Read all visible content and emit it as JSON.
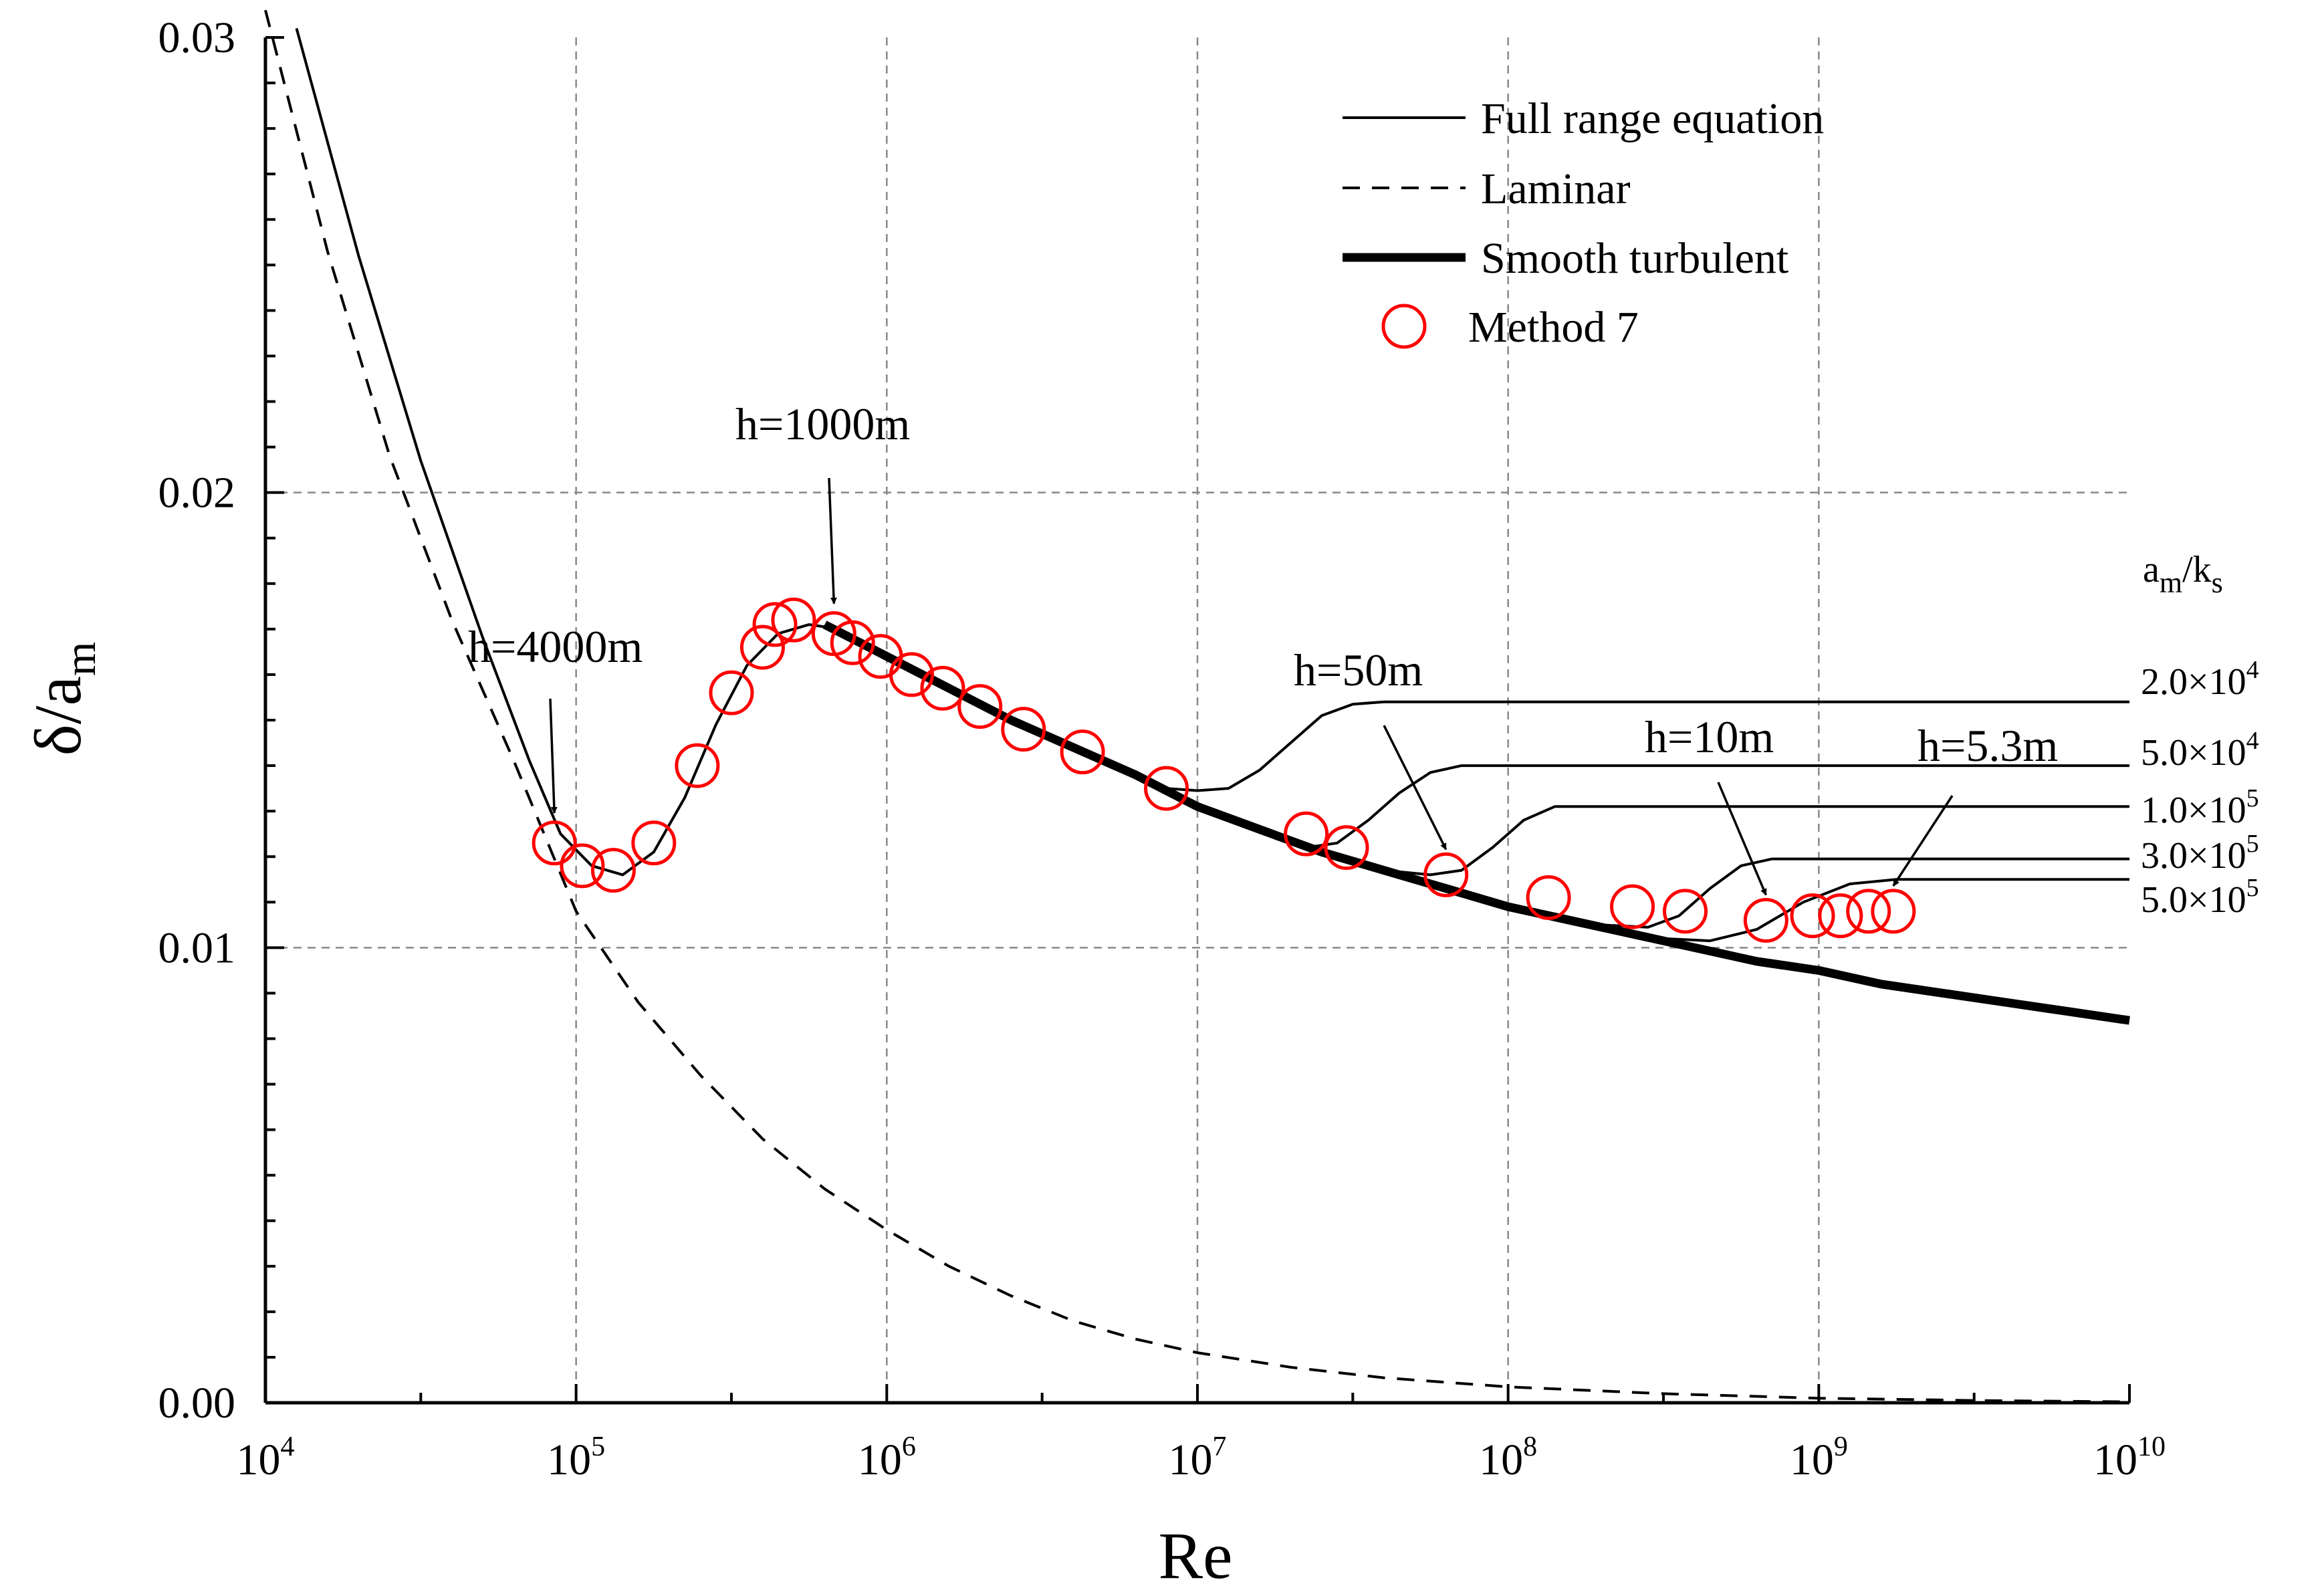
{
  "chart_data": {
    "type": "line",
    "title": "",
    "xlabel": "Re",
    "ylabel": "δ/a_m",
    "xscale": "log",
    "xlim_log10": [
      4,
      10
    ],
    "ylim": [
      0,
      0.03
    ],
    "grid": true,
    "x_ticks": [
      {
        "base": "10",
        "exp": "4"
      },
      {
        "base": "10",
        "exp": "5"
      },
      {
        "base": "10",
        "exp": "6"
      },
      {
        "base": "10",
        "exp": "7"
      },
      {
        "base": "10",
        "exp": "8"
      },
      {
        "base": "10",
        "exp": "9"
      },
      {
        "base": "10",
        "exp": "10"
      }
    ],
    "y_ticks": [
      {
        "value": 0.0,
        "label": "0.00"
      },
      {
        "value": 0.01,
        "label": "0.01"
      },
      {
        "value": 0.02,
        "label": "0.02"
      },
      {
        "value": 0.03,
        "label": "0.03"
      }
    ],
    "legend": {
      "position": "top-right",
      "entries": [
        {
          "label": "Full range equation",
          "style": "thin-solid"
        },
        {
          "label": "Laminar",
          "style": "dashed"
        },
        {
          "label": "Smooth turbulent",
          "style": "thick-solid"
        },
        {
          "label": "Method 7",
          "style": "red-open-circle"
        }
      ]
    },
    "series": {
      "laminar": {
        "name": "Laminar",
        "points": [
          [
            4.0,
            0.0306
          ],
          [
            4.2,
            0.0253
          ],
          [
            4.4,
            0.0208
          ],
          [
            4.6,
            0.0172
          ],
          [
            4.8,
            0.0141
          ],
          [
            5.0,
            0.0108
          ],
          [
            5.2,
            0.0088
          ],
          [
            5.4,
            0.0072
          ],
          [
            5.6,
            0.0058
          ],
          [
            5.8,
            0.0047
          ],
          [
            6.0,
            0.0038
          ],
          [
            6.2,
            0.003
          ],
          [
            6.4,
            0.00235
          ],
          [
            6.6,
            0.0018
          ],
          [
            6.8,
            0.0014
          ],
          [
            7.0,
            0.0011
          ],
          [
            7.3,
            0.00078
          ],
          [
            7.6,
            0.00055
          ],
          [
            8.0,
            0.00035
          ],
          [
            8.5,
            0.0002
          ],
          [
            9.0,
            0.0001
          ],
          [
            9.5,
            5e-05
          ],
          [
            10.0,
            2e-05
          ]
        ]
      },
      "smooth_turbulent": {
        "name": "Smooth turbulent",
        "points": [
          [
            5.8,
            0.0171
          ],
          [
            6.0,
            0.0164
          ],
          [
            6.2,
            0.0157
          ],
          [
            6.4,
            0.015
          ],
          [
            6.6,
            0.0144
          ],
          [
            6.8,
            0.0138
          ],
          [
            7.0,
            0.0131
          ],
          [
            7.2,
            0.0126
          ],
          [
            7.4,
            0.0121
          ],
          [
            7.6,
            0.0117
          ],
          [
            7.8,
            0.0113
          ],
          [
            8.0,
            0.0109
          ],
          [
            8.2,
            0.0106
          ],
          [
            8.4,
            0.0103
          ],
          [
            8.6,
            0.01
          ],
          [
            8.8,
            0.0097
          ],
          [
            9.0,
            0.0095
          ],
          [
            9.2,
            0.0092
          ],
          [
            9.4,
            0.009
          ],
          [
            9.6,
            0.0088
          ],
          [
            9.8,
            0.0086
          ],
          [
            10.0,
            0.0084
          ]
        ]
      },
      "full_range": {
        "name": "Full range equation",
        "main": [
          [
            4.1,
            0.0302
          ],
          [
            4.3,
            0.0252
          ],
          [
            4.5,
            0.0207
          ],
          [
            4.7,
            0.0168
          ],
          [
            4.85,
            0.0141
          ],
          [
            4.95,
            0.0125
          ],
          [
            5.05,
            0.0118
          ],
          [
            5.15,
            0.0116
          ],
          [
            5.25,
            0.0121
          ],
          [
            5.35,
            0.0133
          ],
          [
            5.45,
            0.0149
          ],
          [
            5.55,
            0.0162
          ],
          [
            5.65,
            0.0169
          ],
          [
            5.75,
            0.0171
          ],
          [
            5.85,
            0.017
          ],
          [
            6.0,
            0.0164
          ]
        ],
        "curves": [
          {
            "ratio": "2.0×10",
            "exp": "4",
            "points": [
              [
                6.8,
                0.0138
              ],
              [
                6.9,
                0.0135
              ],
              [
                7.0,
                0.01345
              ],
              [
                7.1,
                0.0135
              ],
              [
                7.2,
                0.0139
              ],
              [
                7.3,
                0.0145
              ],
              [
                7.4,
                0.0151
              ],
              [
                7.5,
                0.01535
              ],
              [
                7.6,
                0.0154
              ],
              [
                10.0,
                0.0154
              ]
            ]
          },
          {
            "ratio": "5.0×10",
            "exp": "4",
            "points": [
              [
                7.25,
                0.0124
              ],
              [
                7.35,
                0.0122
              ],
              [
                7.45,
                0.0123
              ],
              [
                7.55,
                0.0128
              ],
              [
                7.65,
                0.0134
              ],
              [
                7.75,
                0.01385
              ],
              [
                7.85,
                0.014
              ],
              [
                10.0,
                0.014
              ]
            ]
          },
          {
            "ratio": "1.0×10",
            "exp": "5",
            "points": [
              [
                7.6,
                0.0117
              ],
              [
                7.75,
                0.0116
              ],
              [
                7.85,
                0.0117
              ],
              [
                7.95,
                0.0122
              ],
              [
                8.05,
                0.0128
              ],
              [
                8.15,
                0.0131
              ],
              [
                8.25,
                0.0131
              ],
              [
                10.0,
                0.0131
              ]
            ]
          },
          {
            "ratio": "3.0×10",
            "exp": "5",
            "points": [
              [
                8.3,
                0.0105
              ],
              [
                8.45,
                0.01045
              ],
              [
                8.55,
                0.0107
              ],
              [
                8.65,
                0.0113
              ],
              [
                8.75,
                0.0118
              ],
              [
                8.85,
                0.01195
              ],
              [
                10.0,
                0.01195
              ]
            ]
          },
          {
            "ratio": "5.0×10",
            "exp": "5",
            "points": [
              [
                8.5,
                0.0102
              ],
              [
                8.65,
                0.01015
              ],
              [
                8.8,
                0.0104
              ],
              [
                8.95,
                0.011
              ],
              [
                9.1,
                0.0114
              ],
              [
                9.25,
                0.0115
              ],
              [
                10.0,
                0.0115
              ]
            ]
          }
        ]
      },
      "method7": {
        "name": "Method 7",
        "points": [
          [
            4.93,
            0.0123
          ],
          [
            5.02,
            0.0118
          ],
          [
            5.12,
            0.0117
          ],
          [
            5.25,
            0.0123
          ],
          [
            5.39,
            0.014
          ],
          [
            5.5,
            0.0156
          ],
          [
            5.6,
            0.0166
          ],
          [
            5.64,
            0.0171
          ],
          [
            5.7,
            0.0172
          ],
          [
            5.83,
            0.0169
          ],
          [
            5.89,
            0.0167
          ],
          [
            5.98,
            0.0164
          ],
          [
            6.08,
            0.016
          ],
          [
            6.18,
            0.0157
          ],
          [
            6.3,
            0.0153
          ],
          [
            6.44,
            0.0148
          ],
          [
            6.63,
            0.0143
          ],
          [
            6.9,
            0.0135
          ],
          [
            7.35,
            0.0125
          ],
          [
            7.48,
            0.0122
          ],
          [
            7.8,
            0.0116
          ],
          [
            8.13,
            0.0111
          ],
          [
            8.4,
            0.0109
          ],
          [
            8.57,
            0.0108
          ],
          [
            8.83,
            0.0106
          ],
          [
            8.98,
            0.0107
          ],
          [
            9.07,
            0.0107
          ],
          [
            9.16,
            0.0108
          ],
          [
            9.24,
            0.0108
          ]
        ]
      }
    },
    "annotations": [
      {
        "label": "h=4000m",
        "target": [
          4.93,
          0.0124
        ]
      },
      {
        "label": "h=1000m",
        "target": [
          5.83,
          0.017
        ]
      },
      {
        "label": "h=50m",
        "target": [
          7.8,
          0.0116
        ]
      },
      {
        "label": "h=10m",
        "target": [
          8.83,
          0.0106
        ]
      },
      {
        "label": "h=5.3m",
        "target": [
          9.24,
          0.0108
        ]
      }
    ],
    "ratio_header": {
      "base": "a",
      "sub1": "m",
      "mid": "/k",
      "sub2": "s"
    }
  }
}
